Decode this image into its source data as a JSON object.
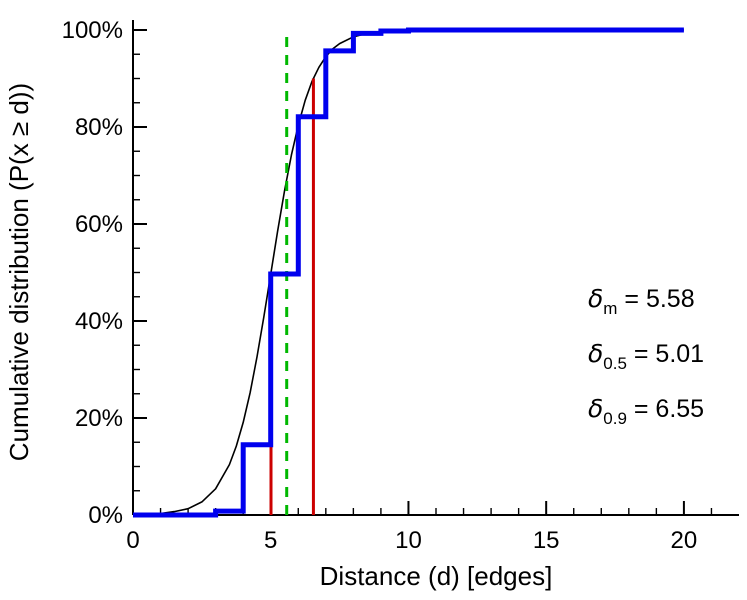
{
  "figure": {
    "background": "#ffffff"
  },
  "chart_data": {
    "type": "line",
    "title": "",
    "xlabel": "Distance (d) [edges]",
    "ylabel": "Cumulative distribution (P(x ≥ d))",
    "xlim": [
      0,
      22
    ],
    "ylim": [
      0,
      1
    ],
    "grid": false,
    "legend_position": "none",
    "x_major_ticks": [
      {
        "value": 0,
        "label": "0"
      },
      {
        "value": 5,
        "label": "5"
      },
      {
        "value": 10,
        "label": "10"
      },
      {
        "value": 15,
        "label": "15"
      },
      {
        "value": 20,
        "label": "20"
      }
    ],
    "x_minor_ticks": [
      1,
      2,
      3,
      4,
      6,
      7,
      8,
      9,
      11,
      12,
      13,
      14,
      16,
      17,
      18,
      19,
      21
    ],
    "y_major_ticks": [
      {
        "value": 0.0,
        "label": "0%"
      },
      {
        "value": 0.2,
        "label": "20%"
      },
      {
        "value": 0.4,
        "label": "40%"
      },
      {
        "value": 0.6,
        "label": "60%"
      },
      {
        "value": 0.8,
        "label": "80%"
      },
      {
        "value": 1.0,
        "label": "100%"
      }
    ],
    "y_minor_ticks": [
      0.05,
      0.1,
      0.15,
      0.25,
      0.3,
      0.35,
      0.45,
      0.5,
      0.55,
      0.65,
      0.7,
      0.75,
      0.85,
      0.9,
      0.95
    ],
    "series": [
      {
        "name": "empirical-cdf",
        "type": "step",
        "color": "#0000ee",
        "width": 5,
        "points": [
          [
            0,
            0
          ],
          [
            3,
            0.008
          ],
          [
            4,
            0.145
          ],
          [
            5,
            0.497
          ],
          [
            6,
            0.821
          ],
          [
            7,
            0.957
          ],
          [
            8,
            0.993
          ],
          [
            9,
            0.998
          ],
          [
            10,
            1.0
          ],
          [
            20,
            1.0
          ]
        ]
      },
      {
        "name": "fitted-cdf",
        "type": "line",
        "color": "#000000",
        "width": 1.6,
        "points": [
          [
            1,
            0.003
          ],
          [
            1.5,
            0.007
          ],
          [
            2,
            0.013
          ],
          [
            2.5,
            0.027
          ],
          [
            3,
            0.054
          ],
          [
            3.5,
            0.104
          ],
          [
            3.75,
            0.142
          ],
          [
            4,
            0.191
          ],
          [
            4.25,
            0.252
          ],
          [
            4.5,
            0.326
          ],
          [
            4.75,
            0.408
          ],
          [
            5,
            0.496
          ],
          [
            5.25,
            0.585
          ],
          [
            5.5,
            0.668
          ],
          [
            5.75,
            0.742
          ],
          [
            6,
            0.804
          ],
          [
            6.25,
            0.855
          ],
          [
            6.5,
            0.894
          ],
          [
            6.75,
            0.923
          ],
          [
            7,
            0.945
          ],
          [
            7.25,
            0.961
          ],
          [
            7.5,
            0.972
          ],
          [
            8,
            0.986
          ],
          [
            8.5,
            0.993
          ],
          [
            9,
            0.997
          ],
          [
            9.5,
            0.998
          ],
          [
            10,
            0.999
          ],
          [
            11,
            1.0
          ],
          [
            12,
            1.0
          ],
          [
            14,
            1.0
          ],
          [
            16,
            1.0
          ],
          [
            18,
            1.0
          ],
          [
            20,
            1.0
          ]
        ]
      }
    ],
    "vlines": [
      {
        "name": "median",
        "x": 5.01,
        "y0": 0,
        "y1": 0.5,
        "color": "#cc0000",
        "width": 3,
        "dash": ""
      },
      {
        "name": "p90",
        "x": 6.55,
        "y0": 0,
        "y1": 0.9,
        "color": "#cc0000",
        "width": 3,
        "dash": ""
      },
      {
        "name": "mean",
        "x": 5.58,
        "y0": 0,
        "y1": 1.0,
        "color": "#00b800",
        "width": 3,
        "dash": "10,8"
      }
    ],
    "annotations": [
      {
        "symbol": "δ",
        "sub": "m",
        "rest": " = 5.58"
      },
      {
        "symbol": "δ",
        "sub": "0.5",
        "rest": " = 5.01"
      },
      {
        "symbol": "δ",
        "sub": "0.9",
        "rest": " = 6.55"
      }
    ]
  }
}
